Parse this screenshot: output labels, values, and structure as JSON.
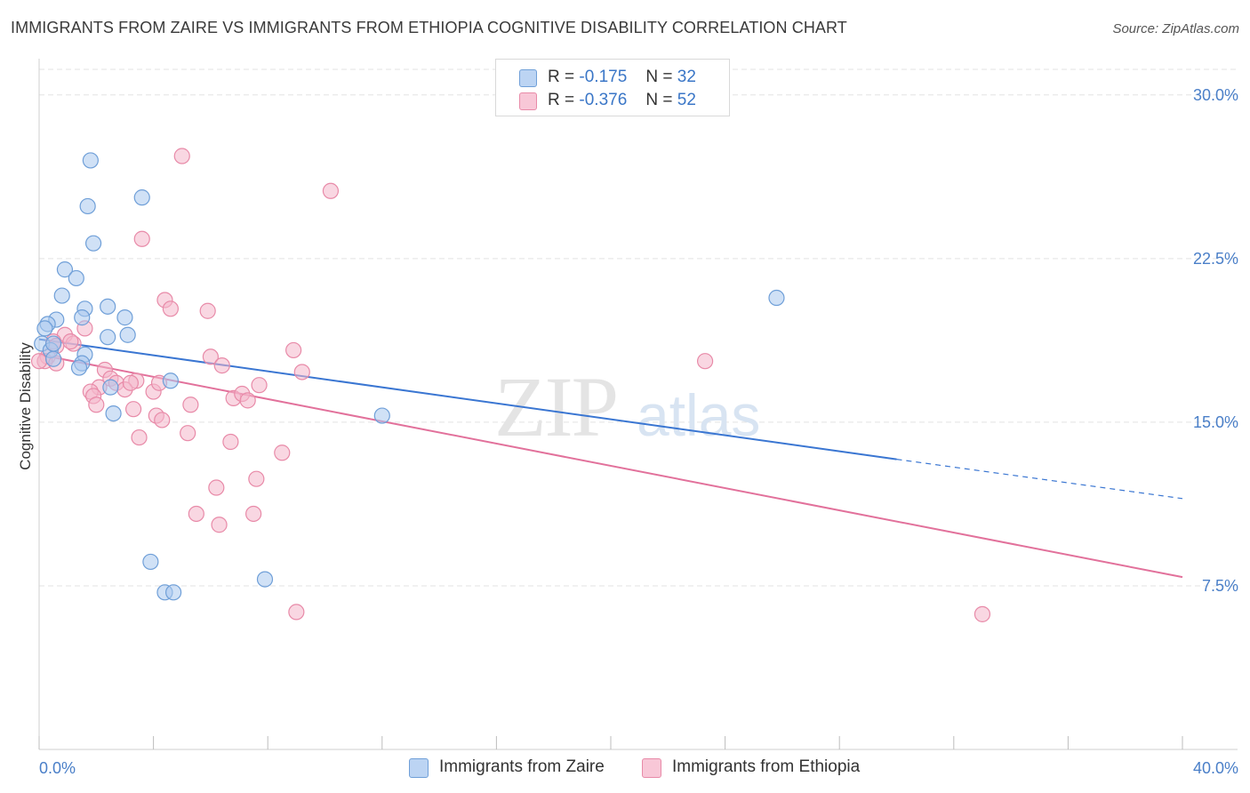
{
  "header": {
    "title": "IMMIGRANTS FROM ZAIRE VS IMMIGRANTS FROM ETHIOPIA COGNITIVE DISABILITY CORRELATION CHART",
    "source": "Source: ZipAtlas.com"
  },
  "legend": {
    "rows": [
      {
        "r_label": "R =",
        "r_value": "-0.175",
        "n_label": "N =",
        "n_value": "32"
      },
      {
        "r_label": "R =",
        "r_value": "-0.376",
        "n_label": "N =",
        "n_value": "52"
      }
    ]
  },
  "watermark": {
    "zip": "ZIP",
    "atlas": "atlas"
  },
  "colors": {
    "zaire_fill": "#a9c8ef",
    "zaire_stroke": "#6f9fd8",
    "zaire_line": "#3a76d2",
    "ethiopia_fill": "#f4b6ca",
    "ethiopia_stroke": "#e88aa8",
    "ethiopia_line": "#e2719b",
    "tick_text": "#4a7fc8",
    "grid": "#e3e3e3"
  },
  "chart_data": {
    "type": "scatter",
    "title": "IMMIGRANTS FROM ZAIRE VS IMMIGRANTS FROM ETHIOPIA COGNITIVE DISABILITY CORRELATION CHART",
    "xlabel": "",
    "ylabel": "Cognitive Disability",
    "xlim": [
      0,
      40
    ],
    "ylim": [
      0,
      31.5
    ],
    "x_tick_labels": [
      "0.0%",
      "40.0%"
    ],
    "y_ticks": [
      7.5,
      15.0,
      22.5,
      30.0
    ],
    "y_tick_labels": [
      "7.5%",
      "15.0%",
      "22.5%",
      "30.0%"
    ],
    "legend_position": "top-center",
    "grid": true,
    "series": [
      {
        "name": "Immigrants from Zaire",
        "x": [
          1.8,
          1.7,
          3.6,
          1.9,
          0.9,
          1.3,
          0.8,
          1.6,
          2.4,
          1.5,
          0.6,
          0.3,
          0.2,
          3.0,
          2.4,
          3.1,
          0.1,
          0.4,
          1.6,
          0.5,
          1.5,
          0.5,
          1.4,
          2.5,
          4.6,
          2.6,
          12.0,
          3.9,
          4.4,
          4.7,
          7.9,
          25.8
        ],
        "y": [
          27.0,
          24.9,
          25.3,
          23.2,
          22.0,
          21.6,
          20.8,
          20.2,
          20.3,
          19.8,
          19.7,
          19.5,
          19.3,
          19.8,
          18.9,
          19.0,
          18.6,
          18.3,
          18.1,
          17.9,
          17.7,
          18.6,
          17.5,
          16.6,
          16.9,
          15.4,
          15.3,
          8.6,
          7.2,
          7.2,
          7.8,
          20.7
        ]
      },
      {
        "name": "Immigrants from Ethiopia",
        "x": [
          5.0,
          10.2,
          3.6,
          4.4,
          4.6,
          5.9,
          1.6,
          0.9,
          0.5,
          1.2,
          0.6,
          0.3,
          0.2,
          0.6,
          2.3,
          2.5,
          3.4,
          2.7,
          2.1,
          3.0,
          3.2,
          4.0,
          4.2,
          1.8,
          1.9,
          2.0,
          5.3,
          3.3,
          4.1,
          4.3,
          6.0,
          6.4,
          6.8,
          7.1,
          7.3,
          7.7,
          8.9,
          9.2,
          6.7,
          5.2,
          6.2,
          3.5,
          8.5,
          7.6,
          6.3,
          5.5,
          7.5,
          9.0,
          23.3,
          33.0,
          0.0,
          1.1
        ],
        "y": [
          27.2,
          25.6,
          23.4,
          20.6,
          20.2,
          20.1,
          19.3,
          19.0,
          18.7,
          18.6,
          18.5,
          18.0,
          17.8,
          17.7,
          17.4,
          17.0,
          16.9,
          16.8,
          16.6,
          16.5,
          16.8,
          16.4,
          16.8,
          16.4,
          16.2,
          15.8,
          15.8,
          15.6,
          15.3,
          15.1,
          18.0,
          17.6,
          16.1,
          16.3,
          16.0,
          16.7,
          18.3,
          17.3,
          14.1,
          14.5,
          12.0,
          14.3,
          13.6,
          12.4,
          10.3,
          10.8,
          10.8,
          6.3,
          17.8,
          6.2,
          17.8,
          18.7
        ]
      }
    ],
    "trend_lines": [
      {
        "name": "Immigrants from Zaire",
        "x": [
          0,
          30.0
        ],
        "y": [
          18.8,
          13.3
        ],
        "dashed_extension": {
          "x": [
            30.0,
            40.0
          ],
          "y": [
            13.3,
            11.5
          ]
        }
      },
      {
        "name": "Immigrants from Ethiopia",
        "x": [
          0,
          40.0
        ],
        "y": [
          18.1,
          7.9
        ]
      }
    ]
  }
}
